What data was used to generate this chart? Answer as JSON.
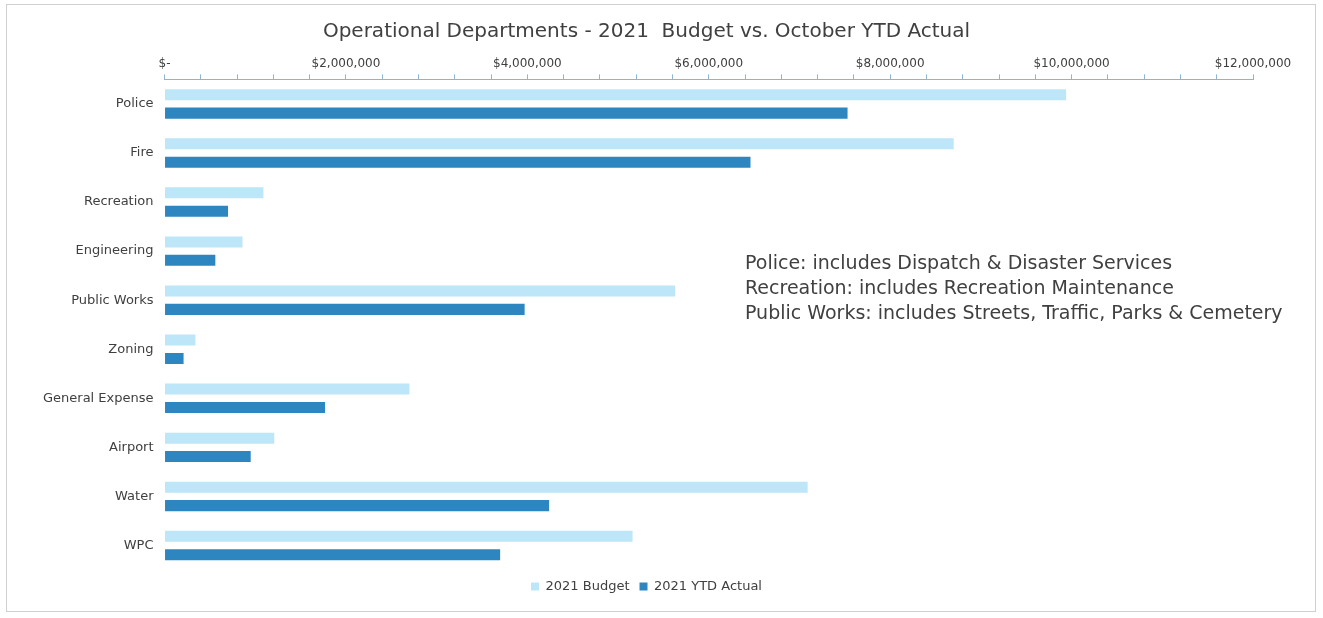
{
  "chart_data": {
    "type": "bar",
    "orientation": "horizontal",
    "title": "Operational Departments - 2021  Budget vs. October YTD Actual",
    "categories": [
      "Police",
      "Fire",
      "Recreation",
      "Engineering",
      "Public Works",
      "Zoning",
      "General Expense",
      "Airport",
      "Water",
      "WPC"
    ],
    "series": [
      {
        "name": "2021 Budget",
        "color": "#bde6f8",
        "values": [
          9940000,
          8700000,
          1090000,
          860000,
          5630000,
          340000,
          2700000,
          1210000,
          7090000,
          5160000
        ]
      },
      {
        "name": "2021 YTD Actual",
        "color": "#2e86c1",
        "values": [
          7530000,
          6460000,
          700000,
          560000,
          3970000,
          210000,
          1770000,
          950000,
          4240000,
          3700000
        ]
      }
    ],
    "xlim": [
      0,
      12000000
    ],
    "xticks": [
      {
        "value": 0,
        "label": "$-"
      },
      {
        "value": 400000,
        "label": null
      },
      {
        "value": 800000,
        "label": null
      },
      {
        "value": 1200000,
        "label": null
      },
      {
        "value": 1600000,
        "label": null
      },
      {
        "value": 2000000,
        "label": "$2,000,000"
      },
      {
        "value": 2400000,
        "label": null
      },
      {
        "value": 2800000,
        "label": null
      },
      {
        "value": 3200000,
        "label": null
      },
      {
        "value": 3600000,
        "label": null
      },
      {
        "value": 4000000,
        "label": "$4,000,000"
      },
      {
        "value": 4400000,
        "label": null
      },
      {
        "value": 4800000,
        "label": null
      },
      {
        "value": 5200000,
        "label": null
      },
      {
        "value": 5600000,
        "label": null
      },
      {
        "value": 6000000,
        "label": "$6,000,000"
      },
      {
        "value": 6400000,
        "label": null
      },
      {
        "value": 6800000,
        "label": null
      },
      {
        "value": 7200000,
        "label": null
      },
      {
        "value": 7600000,
        "label": null
      },
      {
        "value": 8000000,
        "label": "$8,000,000"
      },
      {
        "value": 8400000,
        "label": null
      },
      {
        "value": 8800000,
        "label": null
      },
      {
        "value": 9200000,
        "label": null
      },
      {
        "value": 9600000,
        "label": null
      },
      {
        "value": 10000000,
        "label": "$10,000,000"
      },
      {
        "value": 10400000,
        "label": null
      },
      {
        "value": 10800000,
        "label": null
      },
      {
        "value": 11200000,
        "label": null
      },
      {
        "value": 11600000,
        "label": null
      },
      {
        "value": 12000000,
        "label": "$12,000,000"
      }
    ],
    "legend": "bottom",
    "annotations": [
      "Police:  includes Dispatch & Disaster Services",
      "Recreation:  includes Recreation Maintenance",
      "Public Works: includes Streets, Traffic, Parks & Cemetery"
    ]
  }
}
